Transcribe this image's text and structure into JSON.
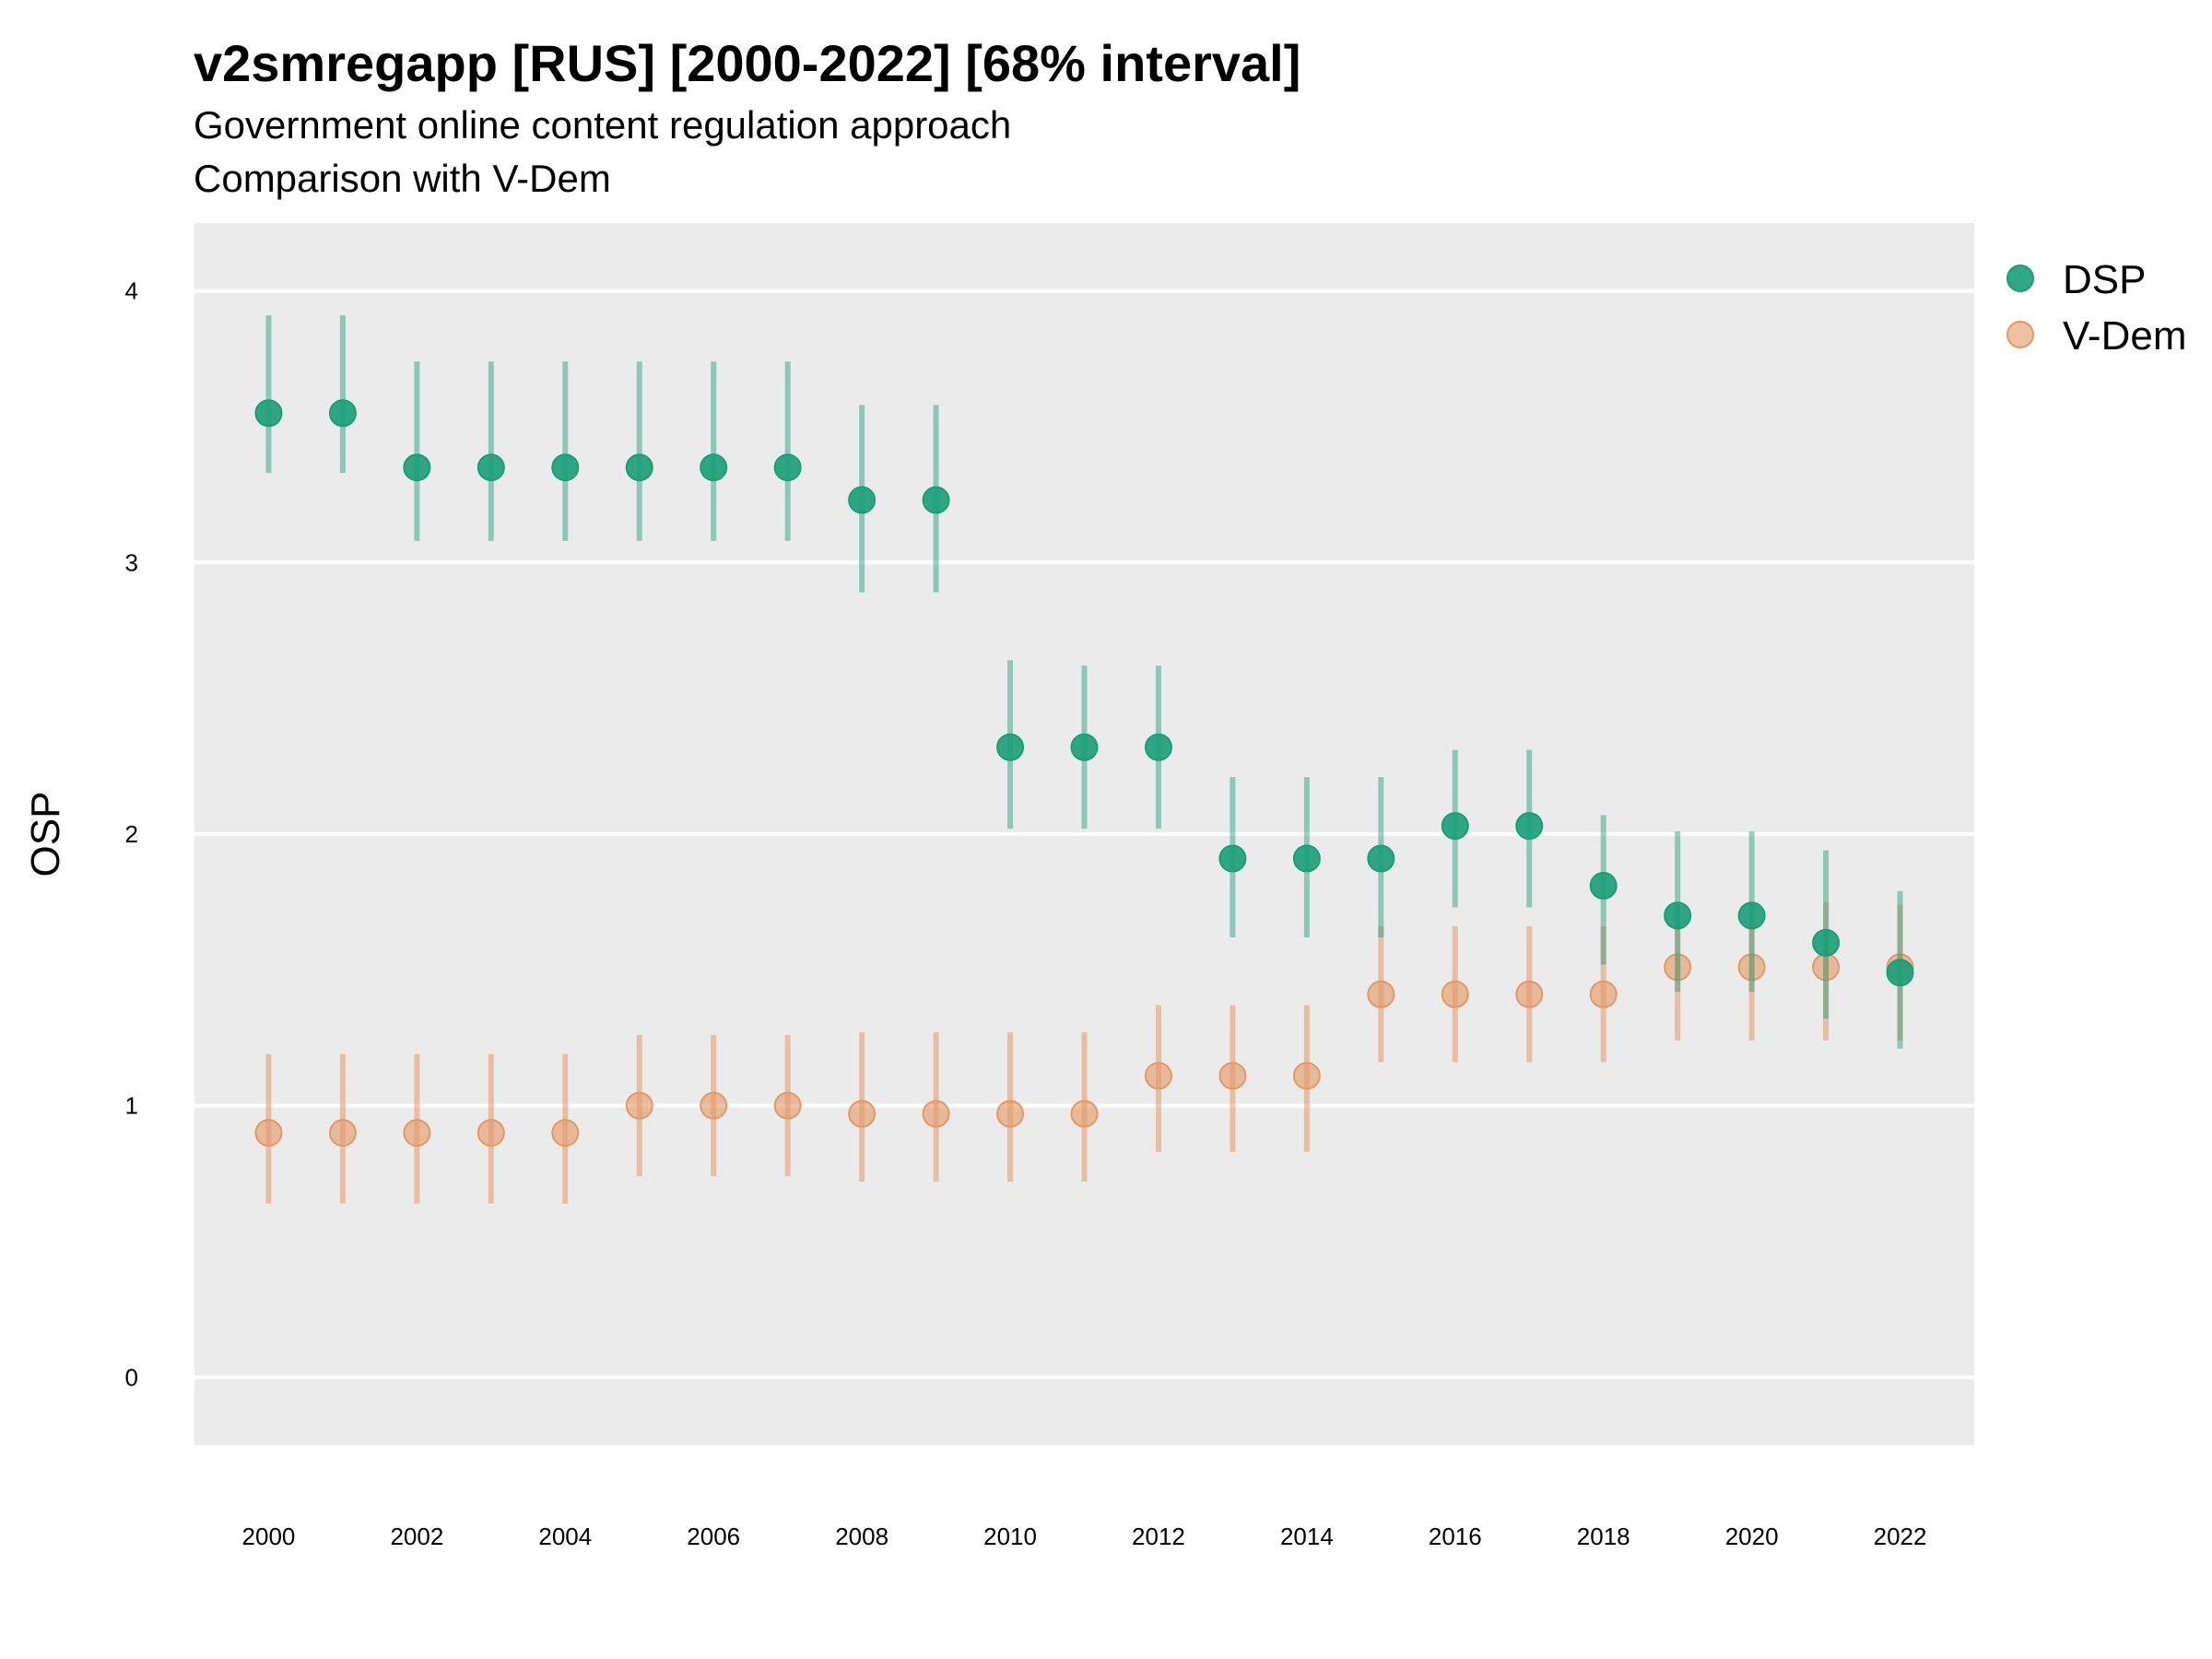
{
  "chart_data": {
    "type": "scatter",
    "title": "v2smregapp [RUS] [2000-2022] [68% interval]",
    "subtitle": "Government online content regulation approach",
    "subtitle2": "Comparison with V-Dem",
    "xlabel": "",
    "ylabel": "OSP",
    "xlim": [
      1999.0,
      2023.0
    ],
    "ylim": [
      -0.25,
      4.25
    ],
    "x_ticks": [
      2000,
      2002,
      2004,
      2006,
      2008,
      2010,
      2012,
      2014,
      2016,
      2018,
      2020,
      2022
    ],
    "y_ticks": [
      0,
      1,
      2,
      3,
      4
    ],
    "grid": true,
    "legend_position": "right",
    "series": [
      {
        "name": "DSP",
        "color": "#1b9e77",
        "points": [
          {
            "x": 2000,
            "y": 3.55,
            "low": 3.33,
            "high": 3.91
          },
          {
            "x": 2001,
            "y": 3.55,
            "low": 3.33,
            "high": 3.91
          },
          {
            "x": 2002,
            "y": 3.35,
            "low": 3.08,
            "high": 3.74
          },
          {
            "x": 2003,
            "y": 3.35,
            "low": 3.08,
            "high": 3.74
          },
          {
            "x": 2004,
            "y": 3.35,
            "low": 3.08,
            "high": 3.74
          },
          {
            "x": 2005,
            "y": 3.35,
            "low": 3.08,
            "high": 3.74
          },
          {
            "x": 2006,
            "y": 3.35,
            "low": 3.08,
            "high": 3.74
          },
          {
            "x": 2007,
            "y": 3.35,
            "low": 3.08,
            "high": 3.74
          },
          {
            "x": 2008,
            "y": 3.23,
            "low": 2.89,
            "high": 3.58
          },
          {
            "x": 2009,
            "y": 3.23,
            "low": 2.89,
            "high": 3.58
          },
          {
            "x": 2010,
            "y": 2.32,
            "low": 2.02,
            "high": 2.64
          },
          {
            "x": 2011,
            "y": 2.32,
            "low": 2.02,
            "high": 2.62
          },
          {
            "x": 2012,
            "y": 2.32,
            "low": 2.02,
            "high": 2.62
          },
          {
            "x": 2013,
            "y": 1.91,
            "low": 1.62,
            "high": 2.21
          },
          {
            "x": 2014,
            "y": 1.91,
            "low": 1.62,
            "high": 2.21
          },
          {
            "x": 2015,
            "y": 1.91,
            "low": 1.62,
            "high": 2.21
          },
          {
            "x": 2016,
            "y": 2.03,
            "low": 1.73,
            "high": 2.31
          },
          {
            "x": 2017,
            "y": 2.03,
            "low": 1.73,
            "high": 2.31
          },
          {
            "x": 2018,
            "y": 1.81,
            "low": 1.52,
            "high": 2.07
          },
          {
            "x": 2019,
            "y": 1.7,
            "low": 1.42,
            "high": 2.01
          },
          {
            "x": 2020,
            "y": 1.7,
            "low": 1.42,
            "high": 2.01
          },
          {
            "x": 2021,
            "y": 1.6,
            "low": 1.32,
            "high": 1.94
          },
          {
            "x": 2022,
            "y": 1.49,
            "low": 1.21,
            "high": 1.79
          }
        ]
      },
      {
        "name": "V-Dem",
        "color": "#e59866",
        "points": [
          {
            "x": 2000,
            "y": 0.9,
            "low": 0.64,
            "high": 1.19
          },
          {
            "x": 2001,
            "y": 0.9,
            "low": 0.64,
            "high": 1.19
          },
          {
            "x": 2002,
            "y": 0.9,
            "low": 0.64,
            "high": 1.19
          },
          {
            "x": 2003,
            "y": 0.9,
            "low": 0.64,
            "high": 1.19
          },
          {
            "x": 2004,
            "y": 0.9,
            "low": 0.64,
            "high": 1.19
          },
          {
            "x": 2005,
            "y": 1.0,
            "low": 0.74,
            "high": 1.26
          },
          {
            "x": 2006,
            "y": 1.0,
            "low": 0.74,
            "high": 1.26
          },
          {
            "x": 2007,
            "y": 1.0,
            "low": 0.74,
            "high": 1.26
          },
          {
            "x": 2008,
            "y": 0.97,
            "low": 0.72,
            "high": 1.27
          },
          {
            "x": 2009,
            "y": 0.97,
            "low": 0.72,
            "high": 1.27
          },
          {
            "x": 2010,
            "y": 0.97,
            "low": 0.72,
            "high": 1.27
          },
          {
            "x": 2011,
            "y": 0.97,
            "low": 0.72,
            "high": 1.27
          },
          {
            "x": 2012,
            "y": 1.11,
            "low": 0.83,
            "high": 1.37
          },
          {
            "x": 2013,
            "y": 1.11,
            "low": 0.83,
            "high": 1.37
          },
          {
            "x": 2014,
            "y": 1.11,
            "low": 0.83,
            "high": 1.37
          },
          {
            "x": 2015,
            "y": 1.41,
            "low": 1.16,
            "high": 1.66
          },
          {
            "x": 2016,
            "y": 1.41,
            "low": 1.16,
            "high": 1.66
          },
          {
            "x": 2017,
            "y": 1.41,
            "low": 1.16,
            "high": 1.66
          },
          {
            "x": 2018,
            "y": 1.41,
            "low": 1.16,
            "high": 1.66
          },
          {
            "x": 2019,
            "y": 1.51,
            "low": 1.24,
            "high": 1.75
          },
          {
            "x": 2020,
            "y": 1.51,
            "low": 1.24,
            "high": 1.75
          },
          {
            "x": 2021,
            "y": 1.51,
            "low": 1.24,
            "high": 1.75
          },
          {
            "x": 2022,
            "y": 1.51,
            "low": 1.24,
            "high": 1.74
          }
        ]
      }
    ],
    "panel_background": "#ebebeb",
    "grid_color": "#ffffff"
  }
}
